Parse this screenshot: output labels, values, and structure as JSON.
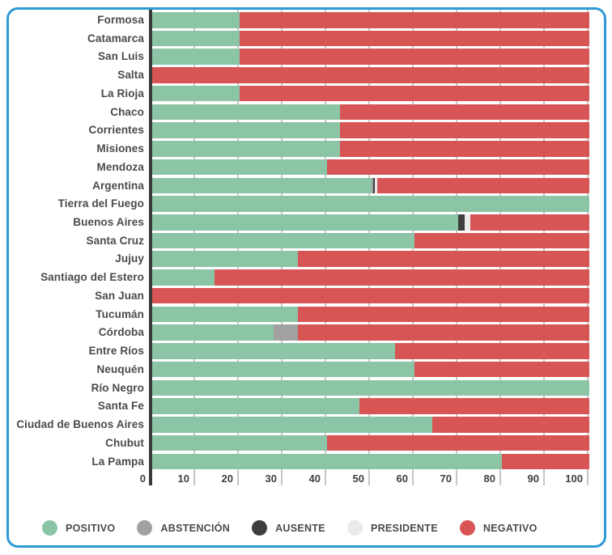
{
  "chart_data": {
    "type": "bar",
    "orientation": "horizontal",
    "stacked": true,
    "title": "",
    "xlabel": "",
    "ylabel": "",
    "units": "percent",
    "xlim": [
      0,
      100
    ],
    "x_ticks": [
      0,
      10,
      20,
      30,
      40,
      50,
      60,
      70,
      80,
      90,
      100
    ],
    "grid": true,
    "legend_position": "bottom",
    "categories": [
      "Formosa",
      "Catamarca",
      "San Luis",
      "Salta",
      "La Rioja",
      "Chaco",
      "Corrientes",
      "Misiones",
      "Mendoza",
      "Argentina",
      "Tierra del Fuego",
      "Buenos Aires",
      "Santa Cruz",
      "Jujuy",
      "Santiago del Estero",
      "San Juan",
      "Tucumán",
      "Córdoba",
      "Entre Ríos",
      "Neuquén",
      "Río Negro",
      "Santa Fe",
      "Ciudad de Buenos Aires",
      "Chubut",
      "La Pampa"
    ],
    "series": [
      {
        "name": "POSITIVO",
        "color": "#8cc4a6",
        "values": [
          20,
          20,
          20,
          0,
          20,
          42.9,
          42.9,
          42.9,
          40,
          50.2,
          100,
          70,
          60,
          33.3,
          14.3,
          0,
          33.3,
          27.8,
          55.6,
          60,
          100,
          47.4,
          64,
          40,
          80
        ]
      },
      {
        "name": "ABSTENCIÓN",
        "color": "#a1a1a1",
        "values": [
          0,
          0,
          0,
          0,
          0,
          0,
          0,
          0,
          0,
          0.4,
          0,
          0,
          0,
          0,
          0,
          0,
          0,
          5.6,
          0,
          0,
          0,
          0,
          0,
          0,
          0
        ]
      },
      {
        "name": "AUSENTE",
        "color": "#3e3e3e",
        "values": [
          0,
          0,
          0,
          0,
          0,
          0,
          0,
          0,
          0,
          0.4,
          0,
          1.4,
          0,
          0,
          0,
          0,
          0,
          0,
          0,
          0,
          0,
          0,
          0,
          0,
          0
        ]
      },
      {
        "name": "PRESIDENTE",
        "color": "#ebebe9",
        "values": [
          0,
          0,
          0,
          0,
          0,
          0,
          0,
          0,
          0,
          0.4,
          0,
          1.4,
          0,
          0,
          0,
          0,
          0,
          0,
          0,
          0,
          0,
          0,
          0,
          0,
          0
        ]
      },
      {
        "name": "NEGATIVO",
        "color": "#d85555",
        "values": [
          80,
          80,
          80,
          100,
          80,
          57.1,
          57.1,
          57.1,
          60,
          48.6,
          0,
          27.2,
          40,
          66.7,
          85.7,
          100,
          66.7,
          66.6,
          44.4,
          40,
          0,
          52.6,
          36,
          60,
          20
        ]
      }
    ]
  },
  "colors": {
    "card_border": "#2e9ad6",
    "axis_line": "#3a3a3a",
    "gridline": "#c6c6c6",
    "label_text": "#4a4a4a"
  }
}
